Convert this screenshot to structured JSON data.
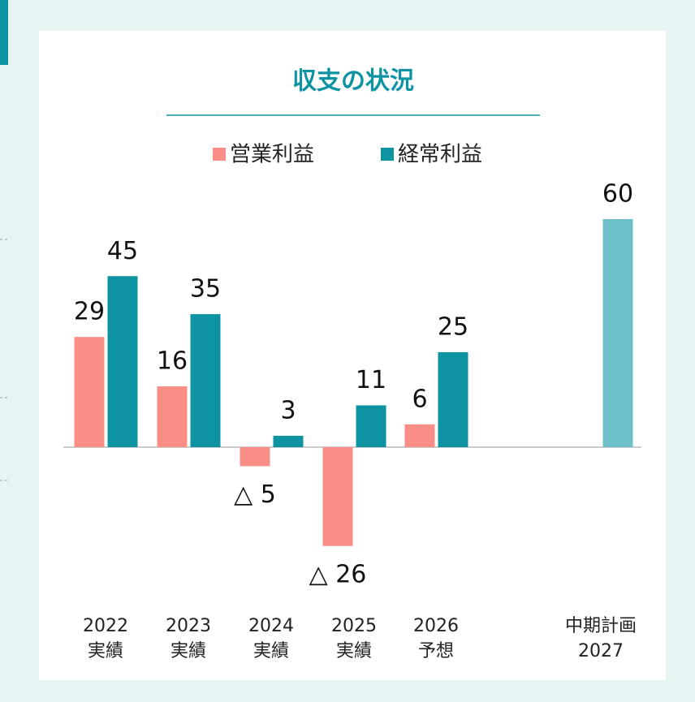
{
  "chart_data": {
    "type": "bar",
    "title": "収支の状況",
    "categories": [
      [
        "2022",
        "実績"
      ],
      [
        "2023",
        "実績"
      ],
      [
        "2024",
        "実績"
      ],
      [
        "2025",
        "実績"
      ],
      [
        "2026",
        "予想"
      ],
      [
        "中期計画",
        "2027"
      ]
    ],
    "series": [
      {
        "name": "営業利益",
        "color": "#f98e86",
        "values": [
          29,
          16,
          -5,
          -26,
          6,
          null
        ],
        "value_labels": [
          "29",
          "16",
          "△ 5",
          "△ 26",
          "6",
          null
        ]
      },
      {
        "name": "経常利益",
        "color": "#0e93a3",
        "colors": [
          "#0e93a3",
          "#0e93a3",
          "#0e93a3",
          "#0e93a3",
          "#0e93a3",
          "#6dbfc9"
        ],
        "values": [
          45,
          35,
          3,
          11,
          25,
          60
        ]
      }
    ]
  }
}
